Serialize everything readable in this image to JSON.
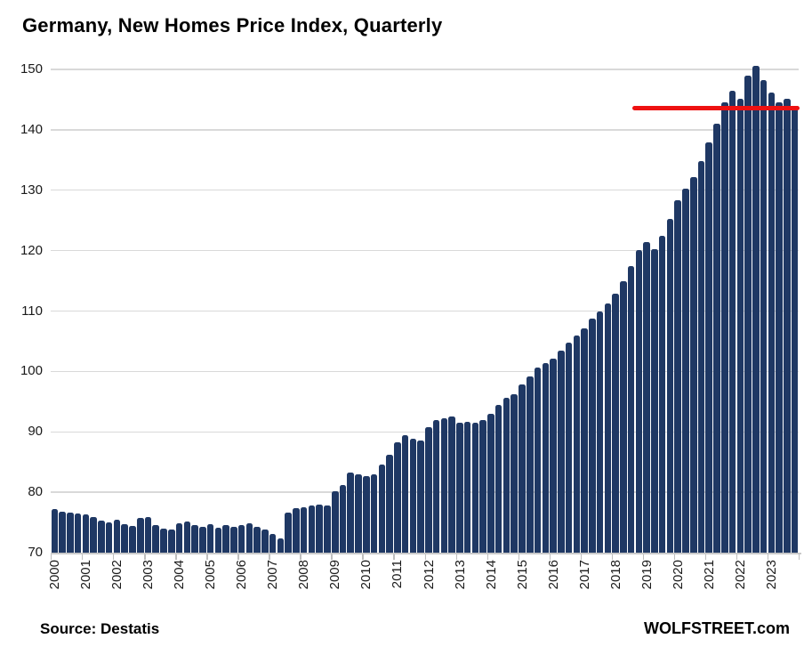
{
  "page": {
    "title": "Germany, New Homes Price Index, Quarterly"
  },
  "footer": {
    "source": "Source: Destatis",
    "brand": "WOLFSTREET.com"
  },
  "chart_data": {
    "type": "bar",
    "title": "Germany, New Homes Price Index, Quarterly",
    "xlabel": "",
    "ylabel": "",
    "ylim": [
      70,
      150
    ],
    "yticks": [
      70,
      80,
      90,
      100,
      110,
      120,
      130,
      140,
      150
    ],
    "grid": "horizontal-gray",
    "legend": "none",
    "bar_color": "#1f3864",
    "grid_color": "#d9d9d9",
    "years": [
      "2000",
      "2001",
      "2002",
      "2003",
      "2004",
      "2005",
      "2006",
      "2007",
      "2008",
      "2009",
      "2010",
      "2011",
      "2012",
      "2013",
      "2014",
      "2015",
      "2016",
      "2017",
      "2018",
      "2019",
      "2020",
      "2021",
      "2022",
      "2023"
    ],
    "quarters_per_year": 4,
    "values": [
      77.2,
      76.8,
      76.6,
      76.5,
      76.3,
      75.9,
      75.3,
      75.0,
      75.4,
      74.7,
      74.4,
      75.7,
      75.9,
      74.5,
      74.0,
      73.8,
      74.9,
      75.1,
      74.5,
      74.3,
      74.7,
      74.1,
      74.6,
      74.2,
      74.5,
      74.8,
      74.3,
      73.8,
      73.1,
      72.3,
      76.7,
      77.3,
      77.5,
      77.8,
      78.0,
      77.8,
      80.2,
      81.2,
      83.3,
      83.0,
      82.6,
      82.9,
      84.6,
      86.2,
      88.3,
      89.5,
      88.8,
      88.5,
      90.8,
      91.9,
      92.2,
      92.5,
      91.5,
      91.7,
      91.5,
      92.0,
      93.0,
      94.5,
      95.7,
      96.2,
      97.8,
      99.2,
      100.6,
      101.4,
      102.1,
      103.5,
      104.8,
      106.0,
      107.2,
      108.7,
      109.9,
      111.2,
      112.8,
      115.0,
      117.5,
      120.1,
      121.4,
      120.3,
      122.5,
      125.3,
      128.3,
      130.2,
      132.2,
      134.8,
      137.9,
      141.0,
      144.6,
      146.4,
      145.2,
      149.0,
      150.6,
      148.2,
      146.1,
      144.6,
      145.2,
      143.6
    ],
    "red_line": {
      "value": 143.6,
      "color": "#ee1111",
      "from_quarter_index": 74.7,
      "to_quarter_index": 96.2
    }
  }
}
